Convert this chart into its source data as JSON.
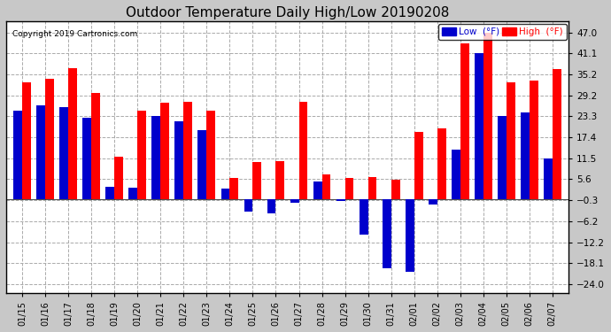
{
  "title": "Outdoor Temperature Daily High/Low 20190208",
  "copyright": "Copyright 2019 Cartronics.com",
  "dates": [
    "01/15",
    "01/16",
    "01/17",
    "01/18",
    "01/19",
    "01/20",
    "01/21",
    "01/22",
    "01/23",
    "01/24",
    "01/25",
    "01/26",
    "01/27",
    "01/28",
    "01/29",
    "01/30",
    "01/31",
    "02/01",
    "02/02",
    "02/03",
    "02/04",
    "02/05",
    "02/06",
    "02/07"
  ],
  "high": [
    33.0,
    33.8,
    37.0,
    30.0,
    12.0,
    25.0,
    27.2,
    27.5,
    25.0,
    6.0,
    10.5,
    10.8,
    27.5,
    7.0,
    6.0,
    6.2,
    5.4,
    18.9,
    20.0,
    44.0,
    47.0,
    33.0,
    33.5,
    36.7
  ],
  "low": [
    25.0,
    26.5,
    26.0,
    23.0,
    3.5,
    3.2,
    23.5,
    22.0,
    19.5,
    3.0,
    -3.5,
    -4.0,
    -1.0,
    5.0,
    -0.5,
    -10.0,
    -19.5,
    -20.5,
    -1.5,
    14.0,
    41.1,
    23.5,
    24.5,
    11.5
  ],
  "high_color": "#ff0000",
  "low_color": "#0000cc",
  "background_color": "#c8c8c8",
  "plot_bg_color": "#ffffff",
  "grid_color": "#aaaaaa",
  "title_fontsize": 11,
  "yticks": [
    -24.0,
    -18.1,
    -12.2,
    -6.2,
    -0.3,
    5.6,
    11.5,
    17.4,
    23.3,
    29.2,
    35.2,
    41.1,
    47.0
  ],
  "ylim": [
    -26.5,
    50.0
  ],
  "bar_width": 0.38,
  "legend_low_label": "Low  (°F)",
  "legend_high_label": "High  (°F)"
}
